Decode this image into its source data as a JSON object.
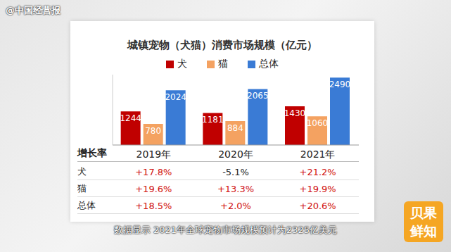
{
  "watermark": "@中国经营报",
  "chart_data": {
    "type": "bar",
    "title": "城镇宠物（犬猫）消费市场规模（亿元）",
    "categories": [
      "2019年",
      "2020年",
      "2021年"
    ],
    "series": [
      {
        "name": "犬",
        "color": "#c00000",
        "values": [
          1244,
          1181,
          1430
        ]
      },
      {
        "name": "猫",
        "color": "#f4a261",
        "values": [
          780,
          884,
          1060
        ]
      },
      {
        "name": "总体",
        "color": "#3a7bd5",
        "values": [
          2024,
          2065,
          2490
        ]
      }
    ],
    "ylim": [
      0,
      2600
    ],
    "yticks": [
      0
    ],
    "tick_labels": "x",
    "grid": false,
    "legend": "top",
    "data_labels": true
  },
  "table": {
    "header": "增长率",
    "rows": [
      {
        "label": "犬",
        "cells": [
          "+17.8%",
          "-5.1%",
          "+21.2%"
        ]
      },
      {
        "label": "猫",
        "cells": [
          "+19.6%",
          "+13.3%",
          "+19.9%"
        ]
      },
      {
        "label": "总体",
        "cells": [
          "+18.5%",
          "+2.0%",
          "+20.6%"
        ]
      }
    ]
  },
  "caption": "数据显示 2021年全球宠物市场规模预计为2325亿美元",
  "logo": "贝果鲜知"
}
